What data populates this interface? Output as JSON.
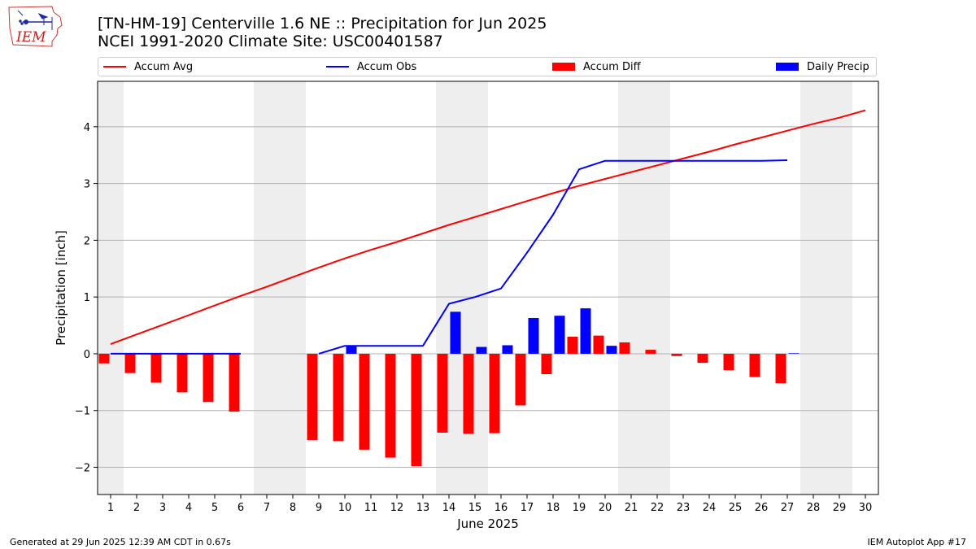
{
  "header": {
    "title_line1": "[TN-HM-19] Centerville 1.6 NE :: Precipitation for Jun 2025",
    "title_line2": "NCEI 1991-2020 Climate Site: USC00401587"
  },
  "logo": {
    "text": "IEM",
    "icon": "iowa-state-outline-logo"
  },
  "footer": {
    "left": "Generated at 29 Jun 2025 12:39 AM CDT in 0.67s",
    "right": "IEM Autoplot App #17"
  },
  "colors": {
    "accum_avg": "#ff0000",
    "accum_obs": "#0000ff",
    "accum_diff": "#ff0000",
    "daily_precip": "#0000ff",
    "weekend_shade": "#eeeeee",
    "grid": "#b0b0b0"
  },
  "chart_data": {
    "type": "bar",
    "title": "[TN-HM-19] Centerville 1.6 NE :: Precipitation for Jun 2025",
    "subtitle": "NCEI 1991-2020 Climate Site: USC00401587",
    "xlabel": "June 2025",
    "ylabel": "Precipitation [inch]",
    "xlim": [
      0.5,
      30.5
    ],
    "ylim": [
      -2.48,
      4.8
    ],
    "yticks": [
      -2,
      -1,
      0,
      1,
      2,
      3,
      4
    ],
    "ytick_labels": [
      "−2",
      "−1",
      "0",
      "1",
      "2",
      "3",
      "4"
    ],
    "xticks": [
      1,
      2,
      3,
      4,
      5,
      6,
      7,
      8,
      9,
      10,
      11,
      12,
      13,
      14,
      15,
      16,
      17,
      18,
      19,
      20,
      21,
      22,
      23,
      24,
      25,
      26,
      27,
      28,
      29,
      30
    ],
    "grid": "horizontal",
    "legend_placement": "top",
    "weekend_spans": [
      [
        0.5,
        1.5
      ],
      [
        6.5,
        8.5
      ],
      [
        13.5,
        15.5
      ],
      [
        20.5,
        22.5
      ],
      [
        27.5,
        29.5
      ]
    ],
    "series": [
      {
        "name": "Accum Avg",
        "kind": "line",
        "x": [
          1,
          2,
          3,
          4,
          5,
          6,
          7,
          8,
          9,
          10,
          11,
          12,
          13,
          14,
          15,
          16,
          17,
          18,
          19,
          20,
          21,
          22,
          23,
          24,
          25,
          26,
          27,
          28,
          29,
          30
        ],
        "values": [
          0.17,
          0.34,
          0.51,
          0.68,
          0.85,
          1.02,
          1.18,
          1.35,
          1.52,
          1.68,
          1.83,
          1.97,
          2.12,
          2.27,
          2.41,
          2.55,
          2.69,
          2.83,
          2.96,
          3.08,
          3.2,
          3.32,
          3.44,
          3.56,
          3.69,
          3.81,
          3.93,
          4.05,
          4.16,
          4.29
        ]
      },
      {
        "name": "Accum Obs",
        "kind": "line",
        "x": [
          1,
          2,
          3,
          4,
          5,
          6,
          7,
          8,
          9,
          10,
          11,
          12,
          13,
          14,
          15,
          16,
          17,
          18,
          19,
          20,
          21,
          22,
          23,
          24,
          25,
          26,
          27
        ],
        "values": [
          0,
          0,
          0,
          0,
          0,
          0,
          null,
          null,
          0,
          0.14,
          0.14,
          0.14,
          0.14,
          0.88,
          1.0,
          1.15,
          1.78,
          2.45,
          3.25,
          3.4,
          3.4,
          3.4,
          3.4,
          3.4,
          3.4,
          3.4,
          3.41
        ]
      },
      {
        "name": "Accum Diff",
        "kind": "bar",
        "x": [
          1,
          2,
          3,
          4,
          5,
          6,
          9,
          10,
          11,
          12,
          13,
          14,
          15,
          16,
          17,
          18,
          19,
          20,
          21,
          22,
          23,
          24,
          25,
          26,
          27
        ],
        "values": [
          -0.17,
          -0.34,
          -0.51,
          -0.68,
          -0.85,
          -1.02,
          -1.52,
          -1.54,
          -1.69,
          -1.83,
          -1.98,
          -1.39,
          -1.41,
          -1.4,
          -0.91,
          -0.36,
          0.3,
          0.32,
          0.2,
          0.07,
          -0.04,
          -0.16,
          -0.29,
          -0.41,
          -0.52
        ]
      },
      {
        "name": "Daily Precip",
        "kind": "bar",
        "x": [
          10,
          14,
          15,
          16,
          17,
          18,
          19,
          20,
          27
        ],
        "values": [
          0.14,
          0.74,
          0.12,
          0.15,
          0.63,
          0.67,
          0.8,
          0.14,
          0.01
        ]
      }
    ]
  }
}
